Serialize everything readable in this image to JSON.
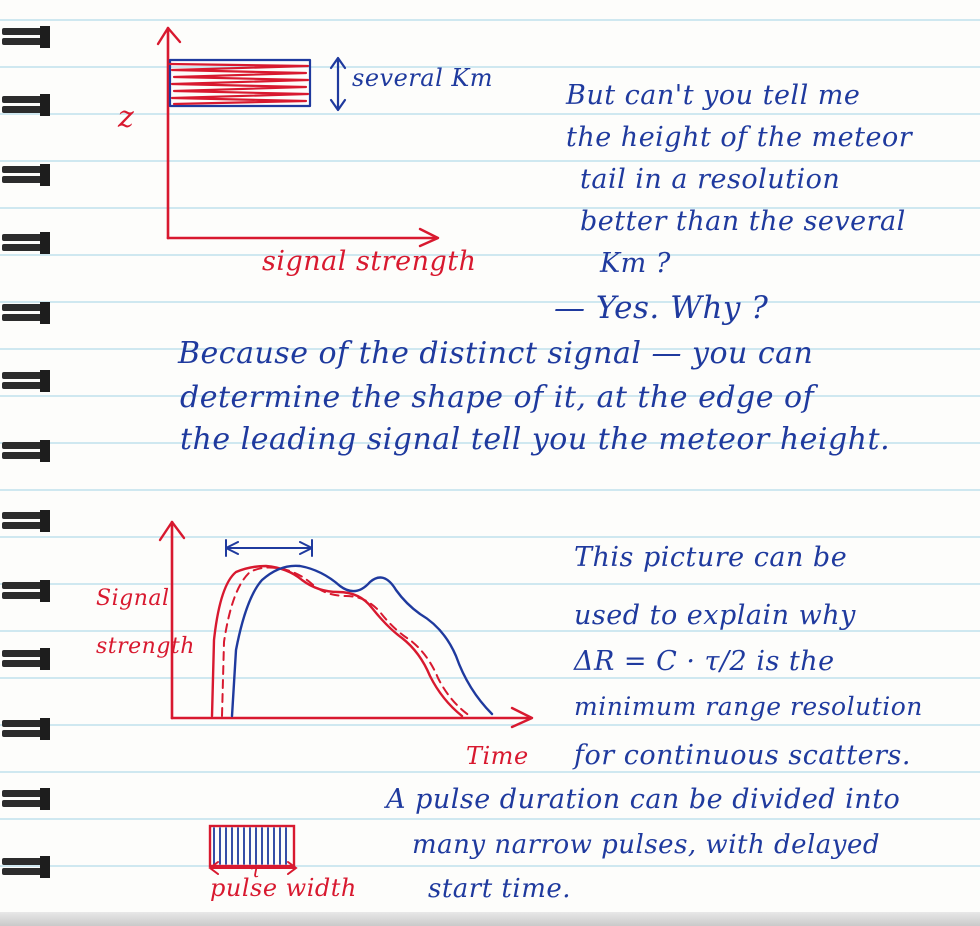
{
  "notebook": {
    "margin_color": "#d8192f",
    "ink_color": "#1f3a9e",
    "rule_color": "#a9d3e6",
    "binding": "spiral-rings"
  },
  "sketch1": {
    "y_axis_label": "z",
    "x_axis_label": "signal strength",
    "bracket_label": "several Km"
  },
  "text_block1": [
    "But can't you tell me",
    "the height of the meteor",
    "tail in a resolution",
    "better than the several",
    "Km ?",
    "— Yes.  Why ?"
  ],
  "text_block2": [
    "Because of the distinct signal — you can",
    "determine the shape of it, at the edge of",
    "the leading signal tell you the meteor height."
  ],
  "sketch2": {
    "y_axis_label_line1": "Signal",
    "y_axis_label_line2": "strength",
    "x_axis_label": "Time"
  },
  "text_block3": [
    "This picture can be",
    "used to explain why",
    "ΔR = C · τ/2  is the",
    "minimum range resolution",
    "for continuous scatters."
  ],
  "sketch3": {
    "tau_label": "τ",
    "label": "pulse width"
  },
  "text_block4": [
    "A pulse duration can be divided into",
    "many narrow pulses, with delayed",
    "start time."
  ]
}
